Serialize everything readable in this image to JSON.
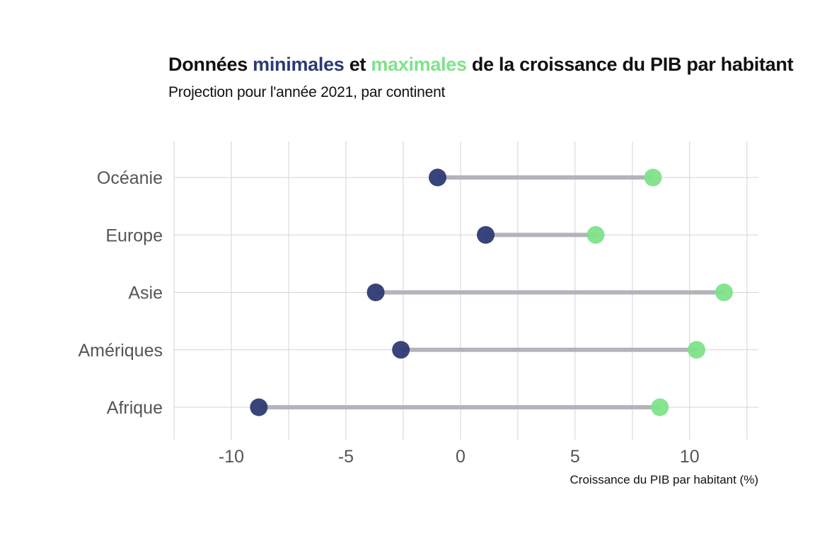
{
  "title": {
    "part1": "Données ",
    "min_word": "minimales",
    "part2": " et ",
    "max_word": "maximales",
    "part3": " de la croissance du PIB par habitant"
  },
  "subtitle": "Projection pour l'année 2021, par continent",
  "colors": {
    "min": "#2d3a73",
    "max": "#7ee38a",
    "segment": "#b3b3ba",
    "grid": "#d4d4d4"
  },
  "chart_data": {
    "type": "dumbbell",
    "xlabel": "Croissance du PIB par habitant (%)",
    "xlim": [
      -12.5,
      13
    ],
    "x_ticks": [
      -10,
      -5,
      0,
      5,
      10
    ],
    "x_tick_labels": [
      "-10",
      "-5",
      "0",
      "5",
      "10"
    ],
    "categories": [
      "Océanie",
      "Europe",
      "Asie",
      "Amériques",
      "Afrique"
    ],
    "series": [
      {
        "name": "minimales",
        "values": [
          -1.0,
          1.1,
          -3.7,
          -2.6,
          -8.8
        ]
      },
      {
        "name": "maximales",
        "values": [
          8.4,
          5.9,
          11.5,
          10.3,
          8.7
        ]
      }
    ],
    "grid": true
  }
}
